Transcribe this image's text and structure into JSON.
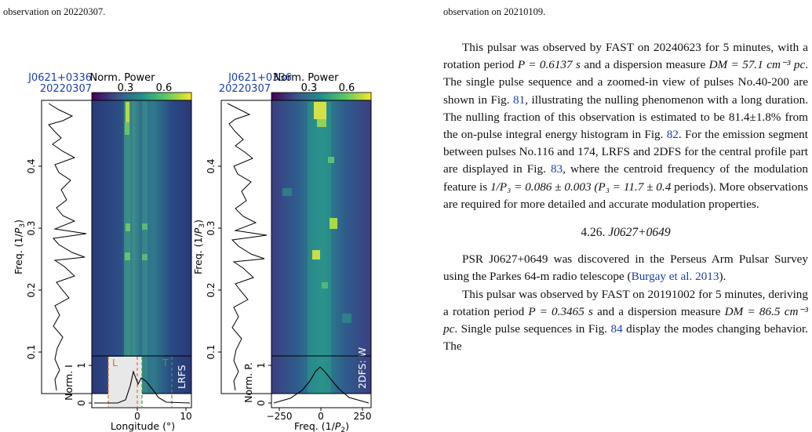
{
  "captions": {
    "left": "observation on 20220307.",
    "right": "observation on 20210109."
  },
  "figure": {
    "pulsar": "J0621+0336",
    "date": "20220307",
    "norm_power_label": "Norm. Power",
    "colorbar_ticks": [
      "0.3",
      "0.6"
    ],
    "freq_label_prefix": "Freq. (1/",
    "freq_label_sym": "P",
    "freq_label_sub": "3",
    "freq_label_suffix": ")",
    "freq_ticks": [
      "0.1",
      "0.2",
      "0.3",
      "0.4"
    ],
    "panel1_tag": "LRFS",
    "panel2_tag": "2DFS: W",
    "norm_i_label": "Norm. I",
    "norm_p_label": "Norm. P.",
    "y_ticks_bottom": [
      "0",
      "1"
    ],
    "longitude_ticks": [
      "0",
      "10"
    ],
    "longitude_label": "Longitude (°)",
    "freq2_ticks": [
      "−250",
      "0",
      "250"
    ],
    "freq2_label_prefix": "Freq. (1/",
    "freq2_label_sym": "P",
    "freq2_label_sub": "2",
    "freq2_label_suffix": ")",
    "marker_L": "L",
    "marker_T": "T"
  },
  "text": {
    "para1_a": "This pulsar was observed by FAST on 20240623 for 5 minutes, with a rotation period ",
    "para1_P": "P = 0.6137 s",
    "para1_b": " and a dispersion measure ",
    "para1_DM": "DM = 57.1 cm⁻³ pc",
    "para1_c": ". The single pulse sequence and a zoomed-in view of pulses No.40-200 are shown in Fig. ",
    "fig81": "81",
    "para1_d": ", illustrating the nulling phenomenon with a long duration. The nulling fraction of this observation is estimated to be 81.4±1.8% from the on-pulse integral energy histogram in Fig. ",
    "fig82": "82",
    "para1_e": ". For the emission segment between pulses No.116 and 174, LRFS and 2DFS for the central profile part are displayed in Fig. ",
    "fig83": "83",
    "para1_f": ", where the centroid frequency of the modulation feature is ",
    "para1_freq": "1/P₃ = 0.086 ± 0.003 (P₃ = 11.7 ± 0.4",
    "para1_g": " periods). More observations are required for more detailed and accurate modulation properties.",
    "section_num": "4.26.",
    "section_name": "J0627+0649",
    "para2_a": "PSR J0627+0649 was discovered in the Perseus Arm Pulsar Survey using the Parkes 64-m radio telescope (",
    "para2_ref": "Burgay et al. 2013",
    "para2_b": ").",
    "para3_a": "This pulsar was observed by FAST on 20191002 for 5 minutes, deriving a rotation period ",
    "para3_P": "P = 0.3465 s",
    "para3_b": " and a dispersion measure ",
    "para3_DM": "DM = 86.5 cm⁻³ pc",
    "para3_c": ". Single pulse sequences in Fig. ",
    "fig84": "84",
    "para3_d": " display the modes changing behavior. The"
  },
  "colors": {
    "link": "#1a3fb0",
    "orange_marker": "#e07020",
    "green_marker": "#3aa03a"
  }
}
